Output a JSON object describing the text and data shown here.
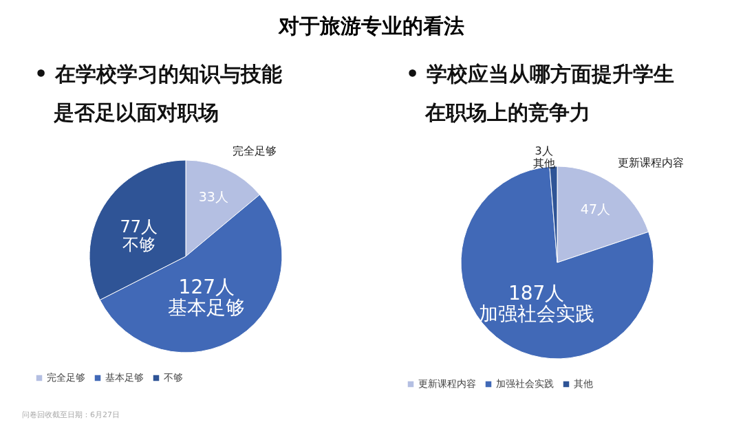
{
  "chart_data": [
    {
      "type": "pie",
      "title": "对于旅游专业的看法",
      "subtitle": "• 在学校学习的知识与技能是否足以面对职场",
      "categories": [
        "完全足够",
        "基本足够",
        "不够"
      ],
      "values": [
        33,
        127,
        77
      ],
      "value_labels": [
        "33人",
        "127人",
        "77人"
      ],
      "colors": [
        "#b4bfe2",
        "#4169b7",
        "#2f5496"
      ],
      "legend": "bottom",
      "annotations": [
        "问卷回收截至日期：6月27日"
      ]
    },
    {
      "type": "pie",
      "subtitle": "• 学校应当从哪方面提升学生在职场上的竞争力",
      "categories": [
        "更新课程内容",
        "加强社会实践",
        "其他"
      ],
      "values": [
        47,
        187,
        3
      ],
      "value_labels": [
        "47人",
        "187人",
        "3人"
      ],
      "colors": [
        "#b4bfe2",
        "#4169b7",
        "#2f5496"
      ],
      "legend": "bottom"
    }
  ]
}
